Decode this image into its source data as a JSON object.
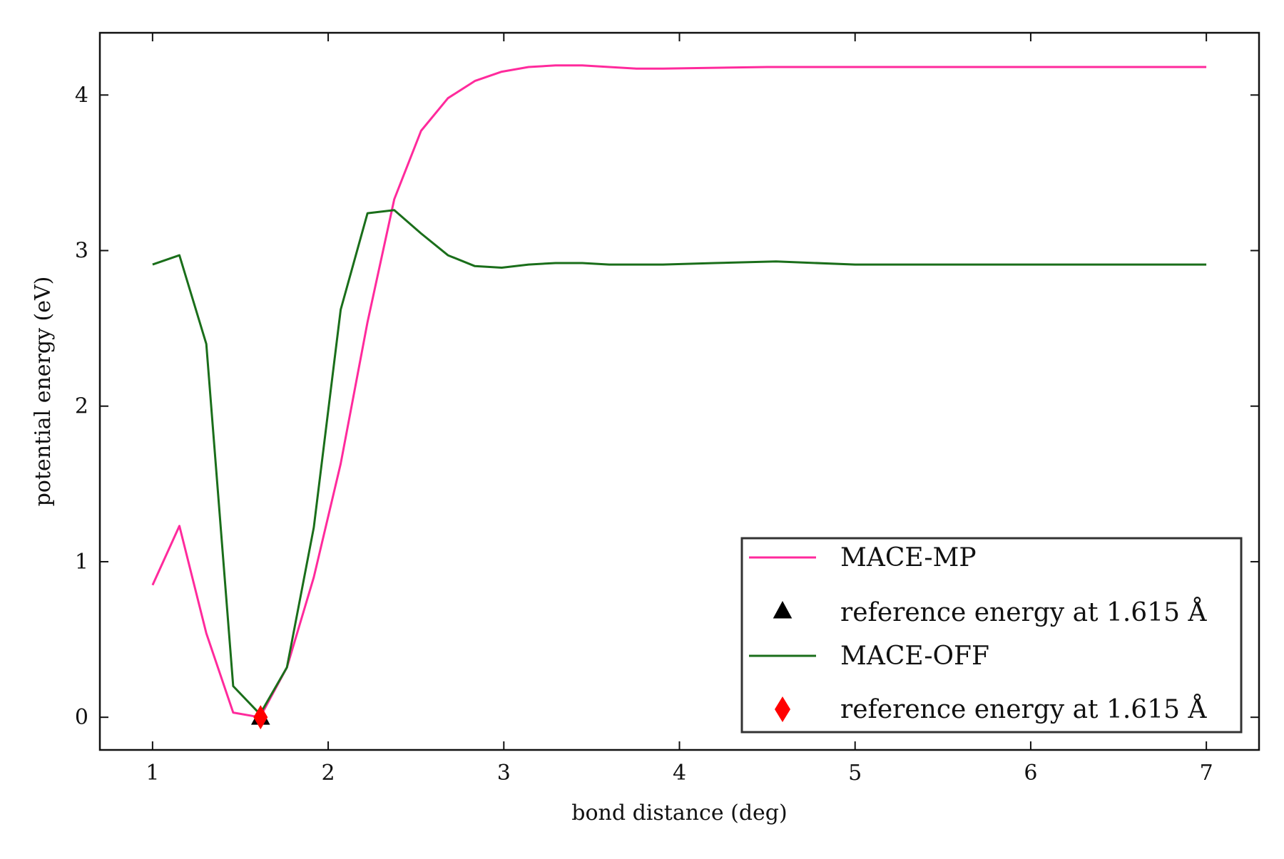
{
  "chart_data": {
    "type": "line",
    "xlabel": "bond distance (deg)",
    "ylabel": "potential energy (eV)",
    "xlim": [
      0.7,
      7.3
    ],
    "ylim": [
      -0.21,
      4.4
    ],
    "xticks": [
      1,
      2,
      3,
      4,
      5,
      6,
      7
    ],
    "yticks": [
      0,
      1,
      2,
      3,
      4
    ],
    "legend_position": "lower-right",
    "series": [
      {
        "name": "MACE-MP",
        "color": "#ff2a9c",
        "x": [
          1.0,
          1.153,
          1.306,
          1.459,
          1.612,
          1.765,
          1.918,
          2.071,
          2.224,
          2.376,
          2.529,
          2.682,
          2.835,
          2.988,
          3.141,
          3.294,
          3.447,
          3.6,
          3.753,
          3.906,
          4.5,
          5.0,
          5.5,
          6.0,
          6.5,
          7.0
        ],
        "y": [
          0.85,
          1.23,
          0.54,
          0.03,
          0.0,
          0.32,
          0.9,
          1.63,
          2.54,
          3.33,
          3.77,
          3.98,
          4.09,
          4.15,
          4.18,
          4.19,
          4.19,
          4.18,
          4.17,
          4.17,
          4.18,
          4.18,
          4.18,
          4.18,
          4.18,
          4.18
        ]
      },
      {
        "name": "MACE-OFF",
        "color": "#1a6e1a",
        "x": [
          1.0,
          1.153,
          1.306,
          1.459,
          1.612,
          1.765,
          1.918,
          2.071,
          2.224,
          2.376,
          2.529,
          2.682,
          2.835,
          2.988,
          3.141,
          3.294,
          3.447,
          3.6,
          3.753,
          3.906,
          4.2,
          4.55,
          5.0,
          5.5,
          6.0,
          6.5,
          7.0
        ],
        "y": [
          2.91,
          2.97,
          2.4,
          0.2,
          0.02,
          0.32,
          1.22,
          2.62,
          3.24,
          3.26,
          3.11,
          2.97,
          2.9,
          2.89,
          2.91,
          2.92,
          2.92,
          2.91,
          2.91,
          2.91,
          2.92,
          2.93,
          2.91,
          2.91,
          2.91,
          2.91,
          2.91
        ]
      }
    ],
    "markers": [
      {
        "name": "reference energy at 1.615 Å",
        "shape": "triangle",
        "color": "#000000",
        "x": 1.615,
        "y": 0.0
      },
      {
        "name": "reference energy at 1.615 Å",
        "shape": "diamond",
        "color": "#ff0000",
        "x": 1.615,
        "y": 0.0
      }
    ]
  }
}
